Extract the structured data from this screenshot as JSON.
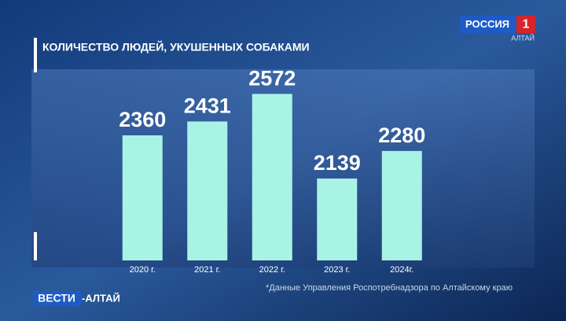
{
  "chart_data": {
    "type": "bar",
    "title": "КОЛИЧЕСТВО ЛЮДЕЙ, УКУШЕННЫХ СОБАКАМИ",
    "categories": [
      "2020 г.",
      "2021 г.",
      "2022 г.",
      "2023 г.",
      "2024г."
    ],
    "values": [
      2360,
      2431,
      2572,
      2139,
      2280
    ],
    "color": "#a9f3e6",
    "ylim": [
      1720,
      2650
    ],
    "note": "*Данные Управления Роспотребнадзора по Алтайскому краю"
  },
  "branding": {
    "channel": "РОССИЯ",
    "channel_number": "1",
    "region": "АЛТАЙ",
    "program": "ВЕСТИ",
    "program_region": "-АЛТАЙ"
  }
}
